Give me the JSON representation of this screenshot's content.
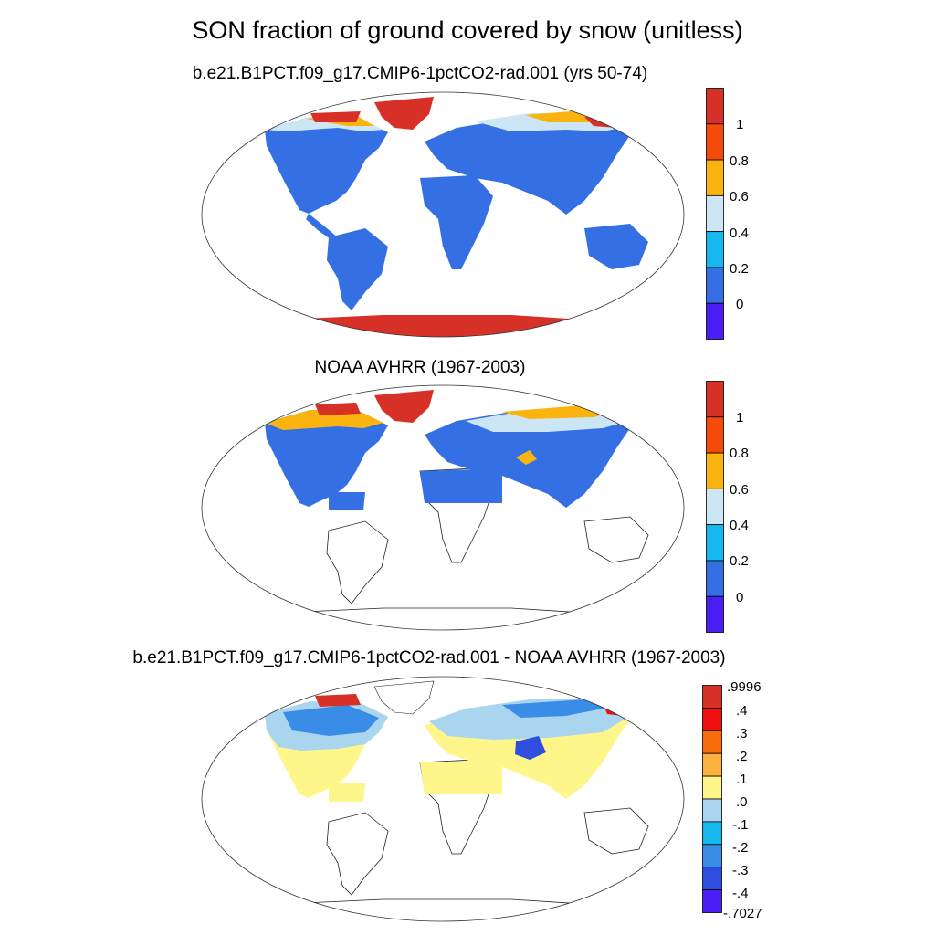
{
  "title": "SON fraction of ground covered by snow (unitless)",
  "panels": [
    {
      "title": "b.e21.B1PCT.f09_g17.CMIP6-1pctCO2-rad.001 (yrs 50-74)",
      "colorbar": {
        "labels": [
          "1",
          "0.8",
          "0.6",
          "0.4",
          "0.2",
          "0"
        ],
        "colors": [
          "#d73027",
          "#f44a0a",
          "#fbb40f",
          "#cde6f5",
          "#17b8f0",
          "#3470e3",
          "#4a1ef2"
        ]
      }
    },
    {
      "title": "NOAA AVHRR (1967-2003)",
      "colorbar": {
        "labels": [
          "1",
          "0.8",
          "0.6",
          "0.4",
          "0.2",
          "0"
        ],
        "colors": [
          "#d73027",
          "#f44a0a",
          "#fbb40f",
          "#cde6f5",
          "#17b8f0",
          "#3470e3",
          "#4a1ef2"
        ]
      }
    },
    {
      "title": "b.e21.B1PCT.f09_g17.CMIP6-1pctCO2-rad.001 - NOAA AVHRR (1967-2003)",
      "colorbar": {
        "labels": [
          ".9996",
          ".4",
          ".3",
          ".2",
          ".1",
          ".0",
          "-.1",
          "-.2",
          "-.3",
          "-.4",
          "-.7027"
        ],
        "colors": [
          "#d73027",
          "#ee1010",
          "#fa6d0d",
          "#fbb040",
          "#fef68a",
          "#a9d5ee",
          "#17b8f0",
          "#3a8de6",
          "#2f4ee0",
          "#4b1ef6"
        ]
      }
    }
  ]
}
